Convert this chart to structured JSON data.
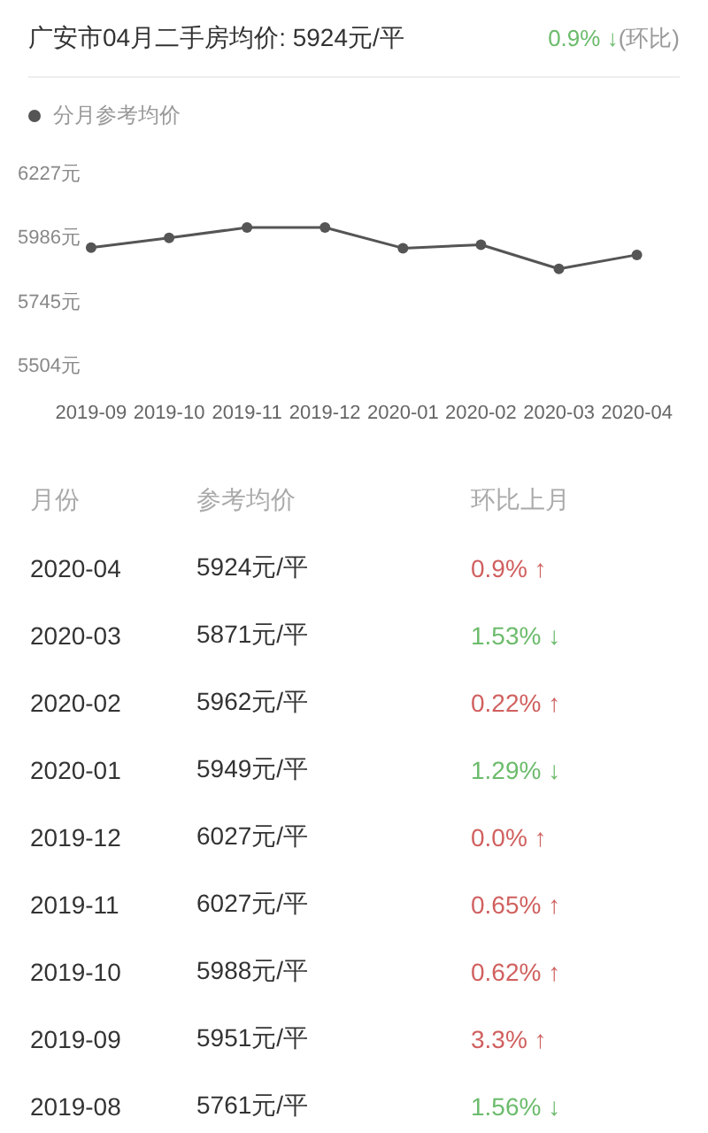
{
  "chart_data": [
    {
      "type": "line",
      "title": "广安市04月二手房均价: 5924元/平",
      "annotations": [
        "0.9% ↓",
        "(环比)"
      ],
      "legend": "top left",
      "marker": "circle",
      "line_style": "solid",
      "categories": [
        "2019-09",
        "2019-10",
        "2019-11",
        "2019-12",
        "2020-01",
        "2020-02",
        "2020-03",
        "2020-04"
      ],
      "series": [
        {
          "name": "分月参考均价",
          "color": "#555555",
          "values": [
            5951,
            5988,
            6027,
            6027,
            5949,
            5962,
            5871,
            5924
          ]
        }
      ],
      "ylim": [
        5504,
        6227
      ],
      "yticks": [
        {
          "value": 5504,
          "label": "5504元"
        },
        {
          "value": 5745,
          "label": "5745元"
        },
        {
          "value": 5986,
          "label": "5986元"
        },
        {
          "value": 6227,
          "label": "6227元"
        }
      ]
    },
    {
      "type": "other",
      "ylabel": "月份",
      "categories": [
        "2020-04",
        "2020-03",
        "2020-02",
        "2020-01",
        "2019-12",
        "2019-11",
        "2019-10",
        "2019-09",
        "2019-08"
      ],
      "series": [
        {
          "name": "参考均价",
          "values": [
            5924,
            5871,
            5962,
            5949,
            6027,
            6027,
            5988,
            5951,
            5761
          ],
          "value_labels": [
            "5924元/平",
            "5871元/平",
            "5962元/平",
            "5949元/平",
            "6027元/平",
            "6027元/平",
            "5988元/平",
            "5951元/平",
            "5761元/平"
          ]
        },
        {
          "name": "环比上月",
          "colors": [
            "#d0605f",
            "#6cbb6c",
            "#d0605f",
            "#6cbb6c",
            "#d0605f",
            "#d0605f",
            "#d0605f",
            "#d0605f",
            "#6cbb6c"
          ],
          "values": [
            0.9,
            1.53,
            0.22,
            1.29,
            0.0,
            0.65,
            0.62,
            3.3,
            1.56
          ],
          "value_labels": [
            "0.9% ↑",
            "1.53% ↓",
            "0.22% ↑",
            "1.29% ↓",
            "0.0% ↑",
            "0.65% ↑",
            "0.62% ↑",
            "3.3% ↑",
            "1.56% ↓"
          ]
        }
      ]
    }
  ]
}
